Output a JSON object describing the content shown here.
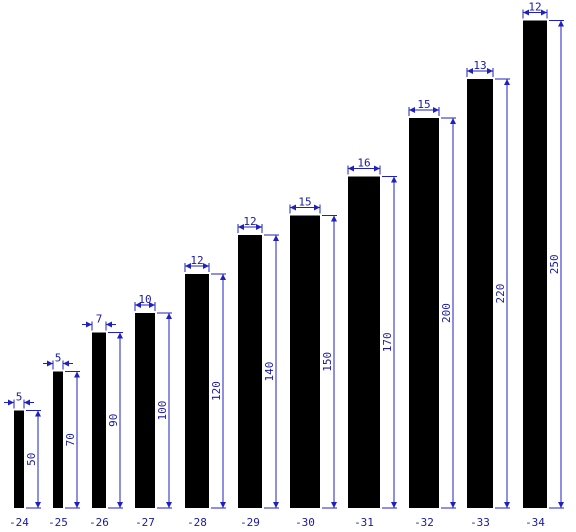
{
  "parts": [
    {
      "label": "-24",
      "width": 5,
      "height": 50
    },
    {
      "label": "-25",
      "width": 5,
      "height": 70
    },
    {
      "label": "-26",
      "width": 7,
      "height": 90
    },
    {
      "label": "-27",
      "width": 10,
      "height": 100
    },
    {
      "label": "-28",
      "width": 12,
      "height": 120
    },
    {
      "label": "-29",
      "width": 12,
      "height": 140
    },
    {
      "label": "-30",
      "width": 15,
      "height": 150
    },
    {
      "label": "-31",
      "width": 16,
      "height": 170
    },
    {
      "label": "-32",
      "width": 15,
      "height": 200
    },
    {
      "label": "-33",
      "width": 13,
      "height": 220
    },
    {
      "label": "-34",
      "width": 12,
      "height": 250
    }
  ]
}
